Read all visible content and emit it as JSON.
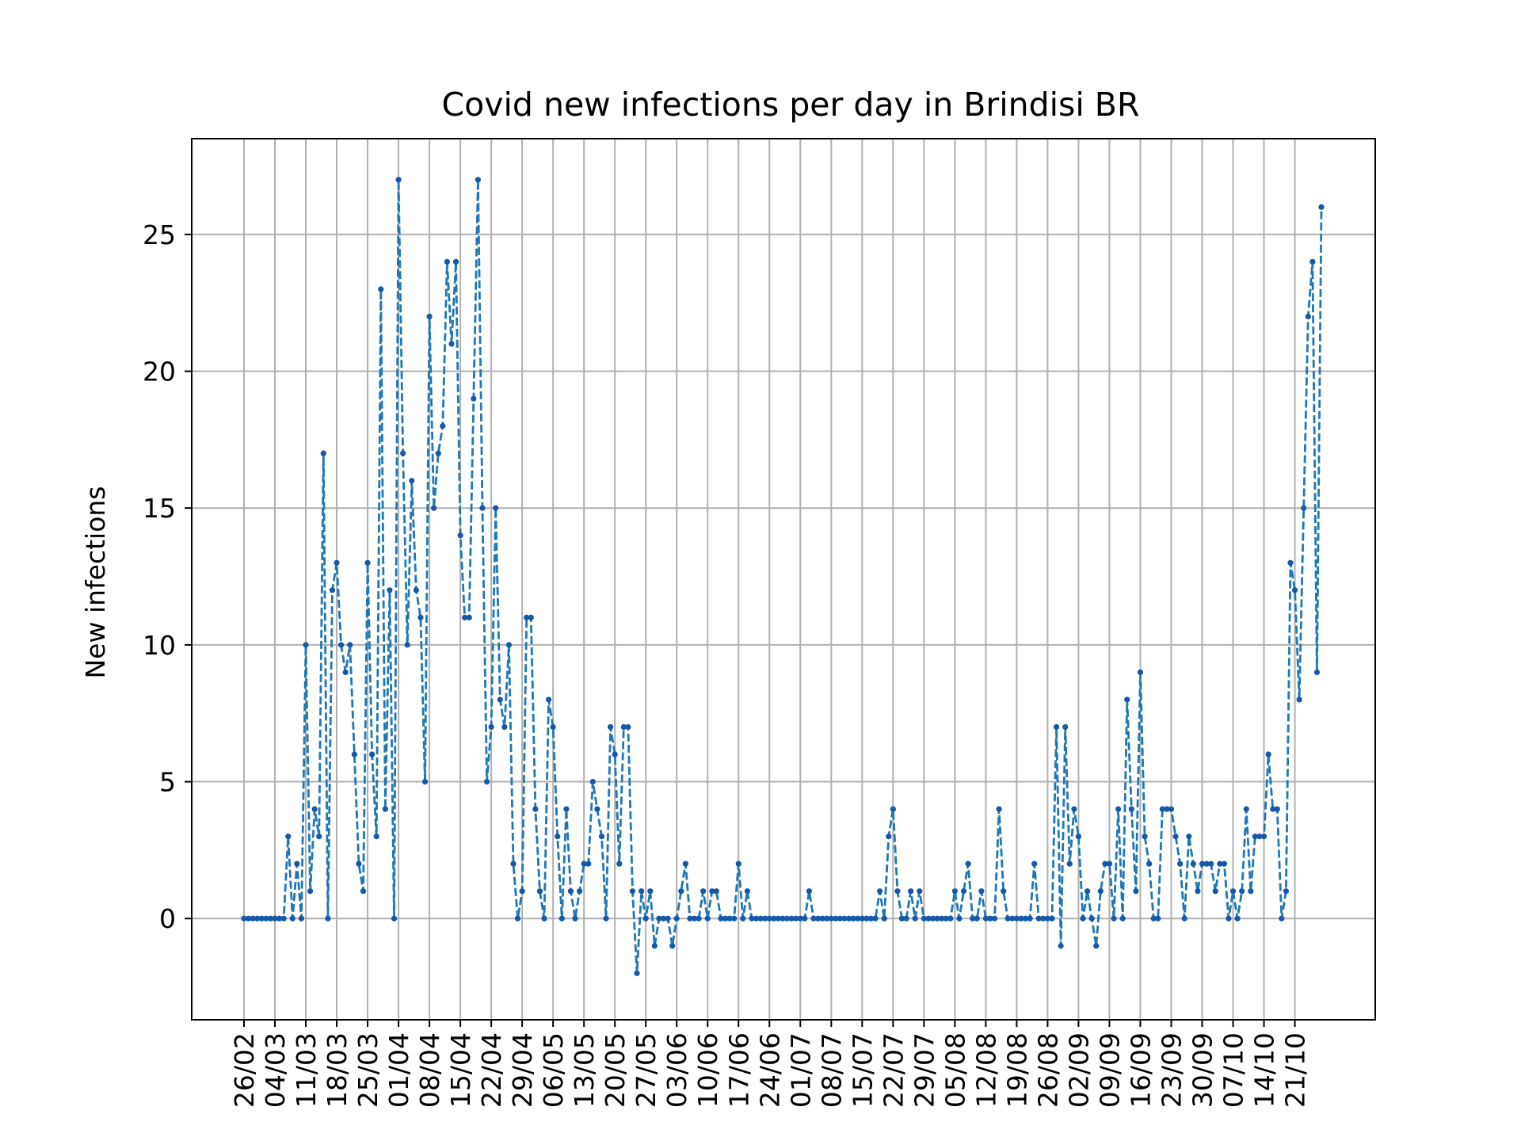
{
  "chart_data": {
    "type": "line",
    "title": "Covid new infections per day in Brindisi BR",
    "xlabel": "",
    "ylabel": "New infections",
    "x_ticks": [
      "26/02",
      "04/03",
      "11/03",
      "18/03",
      "25/03",
      "01/04",
      "08/04",
      "15/04",
      "22/04",
      "29/04",
      "06/05",
      "13/05",
      "20/05",
      "27/05",
      "03/06",
      "10/06",
      "17/06",
      "24/06",
      "01/07",
      "08/07",
      "15/07",
      "22/07",
      "29/07",
      "05/08",
      "12/08",
      "19/08",
      "26/08",
      "02/09",
      "09/09",
      "16/09",
      "23/09",
      "30/09",
      "07/10",
      "14/10",
      "21/10"
    ],
    "y_ticks": [
      0,
      5,
      10,
      15,
      20,
      25
    ],
    "ylim": [
      -3.7,
      28.5
    ],
    "grid": true,
    "series": [
      {
        "color": "#1f77b4",
        "line_style": "dashed",
        "marker": "dot",
        "values": [
          0,
          0,
          0,
          0,
          0,
          0,
          0,
          0,
          0,
          0,
          3,
          0,
          2,
          0,
          10,
          1,
          4,
          3,
          17,
          0,
          12,
          13,
          10,
          9,
          10,
          6,
          2,
          1,
          13,
          6,
          3,
          23,
          4,
          12,
          0,
          27,
          17,
          10,
          16,
          12,
          11,
          5,
          22,
          15,
          17,
          18,
          24,
          21,
          24,
          14,
          11,
          11,
          19,
          27,
          15,
          5,
          7,
          15,
          8,
          7,
          10,
          2,
          0,
          1,
          11,
          11,
          4,
          1,
          0,
          8,
          7,
          3,
          0,
          4,
          1,
          0,
          1,
          2,
          2,
          5,
          4,
          3,
          0,
          7,
          6,
          2,
          7,
          7,
          1,
          -2,
          1,
          0,
          1,
          -1,
          0,
          0,
          0,
          -1,
          0,
          1,
          2,
          0,
          0,
          0,
          1,
          0,
          1,
          1,
          0,
          0,
          0,
          0,
          2,
          0,
          1,
          0,
          0,
          0,
          0,
          0,
          0,
          0,
          0,
          0,
          0,
          0,
          0,
          0,
          1,
          0,
          0,
          0,
          0,
          0,
          0,
          0,
          0,
          0,
          0,
          0,
          0,
          0,
          0,
          0,
          1,
          0,
          3,
          4,
          1,
          0,
          0,
          1,
          0,
          1,
          0,
          0,
          0,
          0,
          0,
          0,
          0,
          1,
          0,
          1,
          2,
          0,
          0,
          1,
          0,
          0,
          0,
          4,
          1,
          0,
          0,
          0,
          0,
          0,
          0,
          2,
          0,
          0,
          0,
          0,
          7,
          -1,
          7,
          2,
          4,
          3,
          0,
          1,
          0,
          -1,
          1,
          2,
          2,
          0,
          4,
          0,
          8,
          4,
          1,
          9,
          3,
          2,
          0,
          0,
          4,
          4,
          4,
          3,
          2,
          0,
          3,
          2,
          1,
          2,
          2,
          2,
          1,
          2,
          2,
          0,
          1,
          0,
          1,
          4,
          1,
          3,
          3,
          3,
          6,
          4,
          4,
          0,
          1,
          13,
          12,
          8,
          15,
          22,
          24,
          9,
          26
        ]
      }
    ]
  }
}
